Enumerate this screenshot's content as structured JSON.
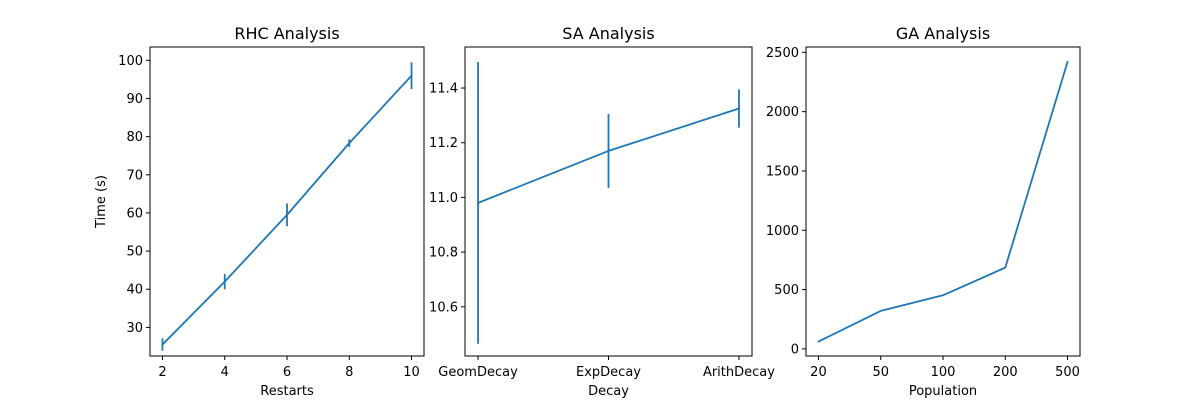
{
  "colors": {
    "series": "#1f77b4",
    "axis": "#000000",
    "background": "#ffffff"
  },
  "chart_data": [
    {
      "type": "line",
      "title": "RHC Analysis",
      "xlabel": "Restarts",
      "ylabel": "Time (s)",
      "x_scale": "linear",
      "xlim": [
        1.6,
        10.4
      ],
      "ylim": [
        22.5,
        103.5
      ],
      "xticks": [
        2,
        4,
        6,
        8,
        10
      ],
      "xtick_labels": [
        "2",
        "4",
        "6",
        "8",
        "10"
      ],
      "yticks": [
        30,
        40,
        50,
        60,
        70,
        80,
        90,
        100
      ],
      "ytick_labels": [
        "30",
        "40",
        "50",
        "60",
        "70",
        "80",
        "90",
        "100"
      ],
      "grid": false,
      "series": [
        {
          "x": [
            2,
            4,
            6,
            8,
            10
          ],
          "values": [
            25.5,
            42.0,
            59.5,
            78.3,
            96.0
          ],
          "yerr": [
            1.6,
            2.0,
            3.0,
            1.0,
            3.5
          ]
        }
      ]
    },
    {
      "type": "line",
      "title": "SA Analysis",
      "xlabel": "Decay",
      "ylabel": "",
      "x_scale": "categorical",
      "categories": [
        "GeomDecay",
        "ExpDecay",
        "ArithDecay"
      ],
      "xlim": [
        -0.1,
        2.1
      ],
      "ylim": [
        10.42,
        11.55
      ],
      "yticks": [
        10.6,
        10.8,
        11.0,
        11.2,
        11.4
      ],
      "ytick_labels": [
        "10.6",
        "10.8",
        "11.0",
        "11.2",
        "11.4"
      ],
      "grid": false,
      "series": [
        {
          "values": [
            10.98,
            11.17,
            11.325
          ],
          "yerr": [
            0.515,
            0.135,
            0.07
          ]
        }
      ]
    },
    {
      "type": "line",
      "title": "GA Analysis",
      "xlabel": "Population",
      "ylabel": "",
      "x_scale": "categorical",
      "categories": [
        "20",
        "50",
        "100",
        "200",
        "500"
      ],
      "xlim": [
        -0.2,
        4.2
      ],
      "ylim": [
        -60,
        2545
      ],
      "yticks": [
        0,
        500,
        1000,
        1500,
        2000,
        2500
      ],
      "ytick_labels": [
        "0",
        "500",
        "1000",
        "1500",
        "2000",
        "2500"
      ],
      "grid": false,
      "series": [
        {
          "values": [
            62,
            320,
            452,
            685,
            2420
          ],
          "yerr": [
            0,
            0,
            0,
            0,
            0
          ]
        }
      ]
    }
  ]
}
